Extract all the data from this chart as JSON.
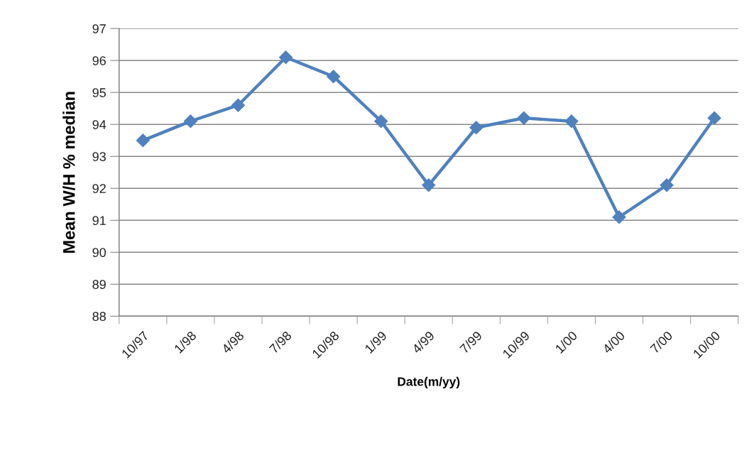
{
  "chart_data": {
    "type": "line",
    "xlabel": "Date(m/yy)",
    "ylabel": "Mean W/H % median",
    "categories": [
      "10/97",
      "1/98",
      "4/98",
      "7/98",
      "10/98",
      "1/99",
      "4/99",
      "7/99",
      "10/99",
      "1/00",
      "4/00",
      "7/00",
      "10/00"
    ],
    "series": [
      {
        "color": "#4f81bd",
        "values": [
          93.5,
          94.1,
          94.6,
          96.1,
          95.5,
          94.1,
          92.1,
          93.9,
          94.2,
          94.1,
          91.1,
          92.1,
          94.2
        ]
      }
    ],
    "ylim": [
      88,
      97
    ],
    "yticks": [
      88,
      89,
      90,
      91,
      92,
      93,
      94,
      95,
      96,
      97
    ],
    "grid": "y",
    "marker": "diamond",
    "line_style": "solid"
  }
}
